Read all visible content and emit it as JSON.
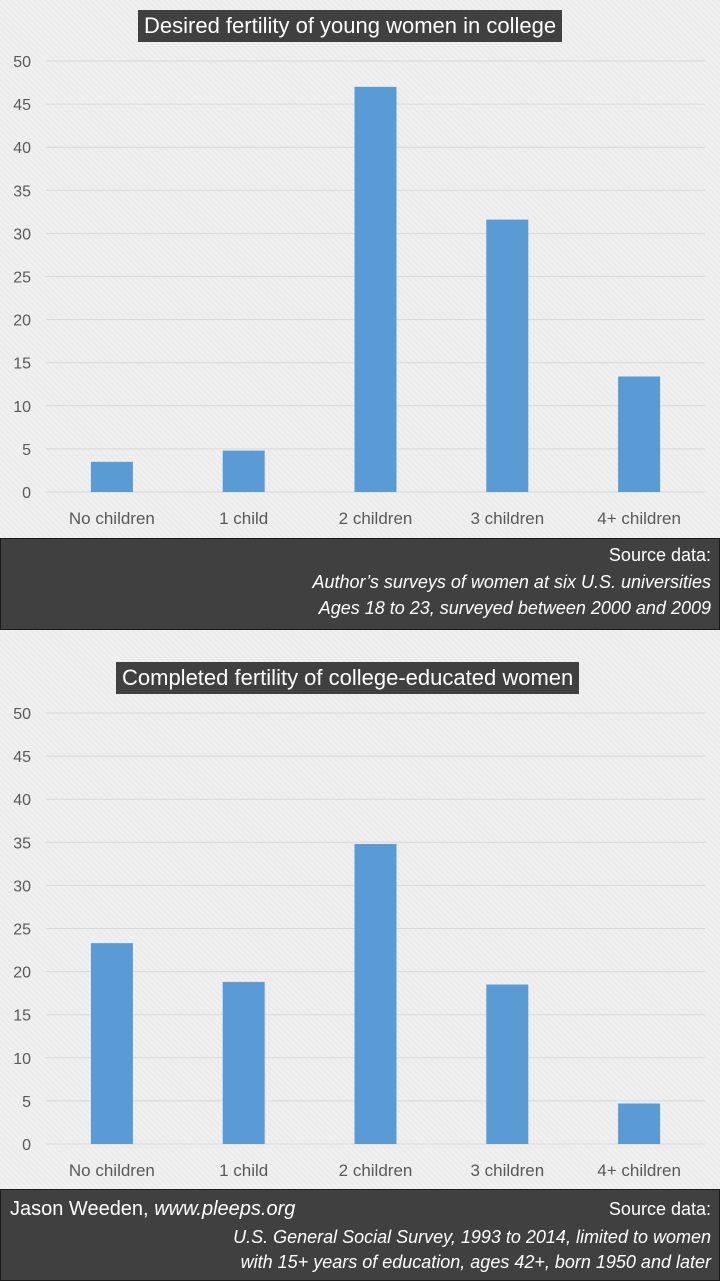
{
  "colors": {
    "bar": "#5b9bd5",
    "grid": "#d9d9d9",
    "axis_text": "#595959",
    "panel": "#404040"
  },
  "chart1": {
    "title": "Desired fertility of young women in college",
    "source_heading": "Source data:",
    "source_line1": "Author’s surveys of women at six U.S. universities",
    "source_line2": "Ages 18 to 23, surveyed between 2000 and 2009"
  },
  "chart2": {
    "title": "Completed fertility of college-educated women",
    "source_heading": "Source data:",
    "source_line1": "U.S. General Social Survey, 1993 to 2014, limited to women",
    "source_line2": "with 15+ years of education, ages 42+, born 1950 and later"
  },
  "footer": {
    "author": "Jason Weeden,",
    "website": "www.pleeps.org"
  },
  "chart_data": [
    {
      "type": "bar",
      "title": "Desired fertility of young women in college",
      "categories": [
        "No children",
        "1 child",
        "2 children",
        "3 children",
        "4+ children"
      ],
      "values": [
        3.5,
        4.8,
        47,
        31.6,
        13.4
      ],
      "ylim": [
        0,
        50
      ],
      "yticks": [
        0,
        5,
        10,
        15,
        20,
        25,
        30,
        35,
        40,
        45,
        50
      ],
      "grid": true,
      "legend": "none"
    },
    {
      "type": "bar",
      "title": "Completed fertility of college-educated women",
      "categories": [
        "No children",
        "1 child",
        "2 children",
        "3 children",
        "4+ children"
      ],
      "values": [
        23.3,
        18.8,
        34.8,
        18.5,
        4.7
      ],
      "ylim": [
        0,
        50
      ],
      "yticks": [
        0,
        5,
        10,
        15,
        20,
        25,
        30,
        35,
        40,
        45,
        50
      ],
      "grid": true,
      "legend": "none"
    }
  ]
}
